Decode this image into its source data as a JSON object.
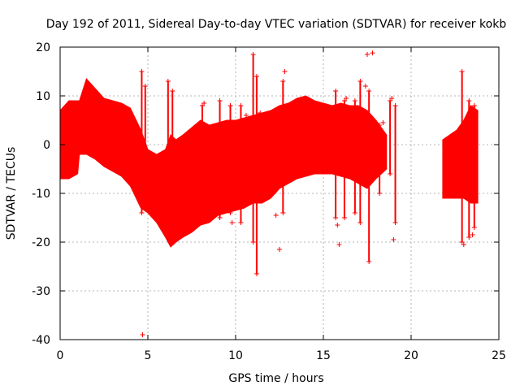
{
  "chart_data": {
    "type": "scatter",
    "title": "Day 192 of 2011, Sidereal Day-to-day VTEC variation (SDTVAR) for receiver kokb",
    "xlabel": "GPS time / hours",
    "ylabel": "SDTVAR / TECUs",
    "xlim": [
      0,
      25
    ],
    "ylim": [
      -40,
      20
    ],
    "xticks": [
      0,
      5,
      10,
      15,
      20,
      25
    ],
    "yticks": [
      -40,
      -30,
      -20,
      -10,
      0,
      10,
      20
    ],
    "grid": true,
    "marker": "+",
    "series_color": "#ff0000",
    "band": [
      {
        "x": 0.0,
        "lo": -7.0,
        "hi": 7.0
      },
      {
        "x": 0.5,
        "lo": -7.0,
        "hi": 9.0
      },
      {
        "x": 1.0,
        "lo": -6.0,
        "hi": 9.0
      },
      {
        "x": 1.1,
        "lo": -2.0,
        "hi": 9.0
      },
      {
        "x": 1.5,
        "lo": -2.0,
        "hi": 13.5
      },
      {
        "x": 2.0,
        "lo": -3.0,
        "hi": 11.5
      },
      {
        "x": 2.5,
        "lo": -4.5,
        "hi": 9.5
      },
      {
        "x": 3.0,
        "lo": -5.5,
        "hi": 9.0
      },
      {
        "x": 3.5,
        "lo": -6.5,
        "hi": 8.5
      },
      {
        "x": 4.0,
        "lo": -8.5,
        "hi": 7.5
      },
      {
        "x": 4.6,
        "lo": -13.0,
        "hi": 3.0
      },
      {
        "x": 5.0,
        "lo": -14.0,
        "hi": -1.0
      },
      {
        "x": 5.5,
        "lo": -16.0,
        "hi": -2.0
      },
      {
        "x": 6.0,
        "lo": -19.0,
        "hi": -1.0
      },
      {
        "x": 6.3,
        "lo": -21.0,
        "hi": 2.0
      },
      {
        "x": 6.6,
        "lo": -20.0,
        "hi": 1.0
      },
      {
        "x": 7.0,
        "lo": -19.0,
        "hi": 2.0
      },
      {
        "x": 7.5,
        "lo": -18.0,
        "hi": 3.5
      },
      {
        "x": 8.0,
        "lo": -16.5,
        "hi": 5.0
      },
      {
        "x": 8.5,
        "lo": -16.0,
        "hi": 4.0
      },
      {
        "x": 9.0,
        "lo": -14.5,
        "hi": 4.5
      },
      {
        "x": 9.5,
        "lo": -14.0,
        "hi": 5.0
      },
      {
        "x": 10.0,
        "lo": -13.5,
        "hi": 5.0
      },
      {
        "x": 10.5,
        "lo": -13.0,
        "hi": 5.5
      },
      {
        "x": 11.0,
        "lo": -12.0,
        "hi": 6.0
      },
      {
        "x": 11.5,
        "lo": -12.0,
        "hi": 6.5
      },
      {
        "x": 12.0,
        "lo": -11.0,
        "hi": 7.0
      },
      {
        "x": 12.5,
        "lo": -9.0,
        "hi": 8.0
      },
      {
        "x": 13.0,
        "lo": -8.0,
        "hi": 8.5
      },
      {
        "x": 13.5,
        "lo": -7.0,
        "hi": 9.5
      },
      {
        "x": 14.0,
        "lo": -6.5,
        "hi": 10.0
      },
      {
        "x": 14.5,
        "lo": -6.0,
        "hi": 9.0
      },
      {
        "x": 15.0,
        "lo": -6.0,
        "hi": 8.5
      },
      {
        "x": 15.5,
        "lo": -6.0,
        "hi": 8.0
      },
      {
        "x": 16.0,
        "lo": -6.5,
        "hi": 8.5
      },
      {
        "x": 16.5,
        "lo": -7.0,
        "hi": 8.0
      },
      {
        "x": 17.0,
        "lo": -8.0,
        "hi": 8.0
      },
      {
        "x": 17.5,
        "lo": -9.0,
        "hi": 7.0
      },
      {
        "x": 18.0,
        "lo": -7.0,
        "hi": 5.0
      },
      {
        "x": 18.6,
        "lo": -5.0,
        "hi": 2.0
      }
    ],
    "band2": [
      {
        "x": 21.8,
        "lo": -11.0,
        "hi": 1.0
      },
      {
        "x": 22.2,
        "lo": -11.0,
        "hi": 2.0
      },
      {
        "x": 22.6,
        "lo": -11.0,
        "hi": 3.0
      },
      {
        "x": 23.0,
        "lo": -11.0,
        "hi": 5.0
      },
      {
        "x": 23.4,
        "lo": -12.0,
        "hi": 8.0
      },
      {
        "x": 23.8,
        "lo": -12.0,
        "hi": 7.0
      }
    ],
    "spikes": [
      {
        "x": 4.65,
        "lo": -14.0,
        "hi": 15.0
      },
      {
        "x": 4.85,
        "lo": -12.0,
        "hi": 12.0
      },
      {
        "x": 6.15,
        "lo": -18.0,
        "hi": 13.0
      },
      {
        "x": 6.4,
        "lo": -20.0,
        "hi": 11.0
      },
      {
        "x": 8.1,
        "lo": -16.0,
        "hi": 8.0
      },
      {
        "x": 9.1,
        "lo": -15.0,
        "hi": 9.0
      },
      {
        "x": 9.7,
        "lo": -14.0,
        "hi": 8.0
      },
      {
        "x": 10.3,
        "lo": -16.0,
        "hi": 8.0
      },
      {
        "x": 11.0,
        "lo": -20.0,
        "hi": 18.5
      },
      {
        "x": 11.2,
        "lo": -26.5,
        "hi": 14.0
      },
      {
        "x": 12.7,
        "lo": -14.0,
        "hi": 13.0
      },
      {
        "x": 15.7,
        "lo": -15.0,
        "hi": 11.0
      },
      {
        "x": 16.2,
        "lo": -15.0,
        "hi": 9.0
      },
      {
        "x": 16.8,
        "lo": -14.0,
        "hi": 9.0
      },
      {
        "x": 17.1,
        "lo": -16.0,
        "hi": 13.0
      },
      {
        "x": 17.6,
        "lo": -24.0,
        "hi": 11.0
      },
      {
        "x": 18.2,
        "lo": -10.0,
        "hi": 4.0
      },
      {
        "x": 18.8,
        "lo": -6.0,
        "hi": 9.0
      },
      {
        "x": 19.1,
        "lo": -16.0,
        "hi": 8.0
      },
      {
        "x": 22.9,
        "lo": -20.0,
        "hi": 15.0
      },
      {
        "x": 23.3,
        "lo": -19.0,
        "hi": 9.0
      },
      {
        "x": 23.6,
        "lo": -17.0,
        "hi": 8.0
      }
    ],
    "outliers": [
      {
        "x": 4.7,
        "y": -39.0
      },
      {
        "x": 7.0,
        "y": -17.5
      },
      {
        "x": 8.2,
        "y": 8.5
      },
      {
        "x": 9.8,
        "y": -16.0
      },
      {
        "x": 10.6,
        "y": 6.0
      },
      {
        "x": 11.4,
        "y": 6.5
      },
      {
        "x": 12.3,
        "y": -14.5
      },
      {
        "x": 12.5,
        "y": -21.5
      },
      {
        "x": 12.8,
        "y": 15.0
      },
      {
        "x": 14.5,
        "y": 8.0
      },
      {
        "x": 15.8,
        "y": -16.5
      },
      {
        "x": 15.9,
        "y": -20.5
      },
      {
        "x": 16.3,
        "y": 9.5
      },
      {
        "x": 17.4,
        "y": 12.0
      },
      {
        "x": 17.5,
        "y": 18.5
      },
      {
        "x": 17.8,
        "y": 18.8
      },
      {
        "x": 18.4,
        "y": 4.5
      },
      {
        "x": 18.9,
        "y": 9.5
      },
      {
        "x": 19.0,
        "y": -19.5
      },
      {
        "x": 23.0,
        "y": -20.5
      },
      {
        "x": 23.5,
        "y": -18.5
      }
    ]
  }
}
